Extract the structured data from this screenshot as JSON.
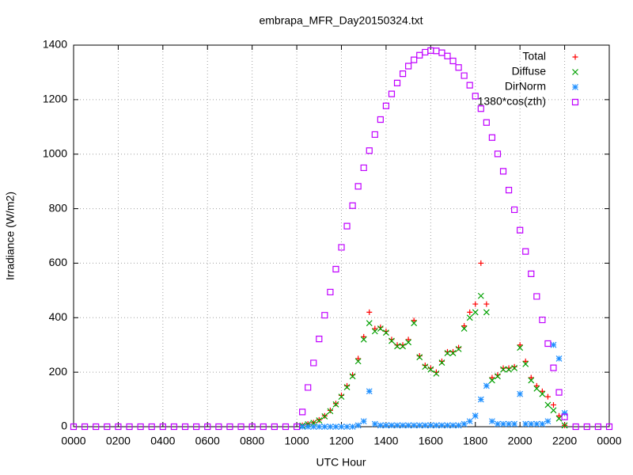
{
  "chart_data": {
    "type": "scatter",
    "title": "embrapa_MFR_Day20150324.txt",
    "xlabel": "UTC Hour",
    "ylabel": "Irradiance (W/m2)",
    "x": [
      0,
      0.5,
      1,
      1.5,
      2,
      2.5,
      3,
      3.5,
      4,
      4.5,
      5,
      5.5,
      6,
      6.5,
      7,
      7.5,
      8,
      8.5,
      9,
      9.5,
      10,
      10.25,
      10.5,
      10.75,
      11,
      11.25,
      11.5,
      11.75,
      12,
      12.25,
      12.5,
      12.75,
      13,
      13.25,
      13.5,
      13.75,
      14,
      14.25,
      14.5,
      14.75,
      15,
      15.25,
      15.5,
      15.75,
      16,
      16.25,
      16.5,
      16.75,
      17,
      17.25,
      17.5,
      17.75,
      18,
      18.25,
      18.5,
      18.75,
      19,
      19.25,
      19.5,
      19.75,
      20,
      20.25,
      20.5,
      20.75,
      21,
      21.25,
      21.5,
      21.75,
      22,
      22.5,
      23,
      23.5,
      24
    ],
    "series": [
      {
        "name": "Total",
        "color": "#ff0000",
        "marker": "plus",
        "values": [
          null,
          null,
          null,
          null,
          null,
          null,
          null,
          null,
          null,
          null,
          null,
          null,
          null,
          null,
          null,
          null,
          null,
          null,
          null,
          null,
          null,
          5,
          10,
          15,
          25,
          40,
          60,
          85,
          115,
          150,
          190,
          250,
          330,
          420,
          360,
          365,
          350,
          320,
          300,
          300,
          320,
          390,
          260,
          225,
          215,
          200,
          240,
          275,
          275,
          290,
          370,
          420,
          450,
          600,
          450,
          180,
          190,
          215,
          215,
          220,
          300,
          240,
          180,
          150,
          130,
          110,
          80,
          40,
          5,
          null,
          null,
          null,
          null
        ]
      },
      {
        "name": "Diffuse",
        "color": "#00a000",
        "marker": "cross",
        "values": [
          null,
          null,
          null,
          null,
          null,
          null,
          null,
          null,
          null,
          null,
          null,
          null,
          null,
          null,
          null,
          null,
          null,
          null,
          null,
          null,
          null,
          4,
          9,
          14,
          23,
          38,
          57,
          82,
          110,
          145,
          185,
          240,
          320,
          380,
          350,
          360,
          345,
          315,
          295,
          295,
          310,
          380,
          255,
          220,
          210,
          195,
          235,
          270,
          270,
          285,
          360,
          400,
          420,
          480,
          420,
          170,
          185,
          210,
          210,
          215,
          290,
          230,
          170,
          140,
          120,
          80,
          60,
          30,
          5,
          null,
          null,
          null,
          null
        ]
      },
      {
        "name": "DirNorm",
        "color": "#1e8fff",
        "marker": "star",
        "values": [
          null,
          null,
          null,
          null,
          null,
          null,
          null,
          null,
          null,
          null,
          null,
          null,
          null,
          null,
          null,
          null,
          null,
          null,
          null,
          null,
          null,
          0,
          0,
          0,
          0,
          0,
          0,
          0,
          0,
          0,
          0,
          5,
          20,
          130,
          10,
          5,
          5,
          5,
          5,
          5,
          5,
          5,
          5,
          5,
          5,
          5,
          5,
          5,
          5,
          5,
          10,
          20,
          40,
          100,
          150,
          20,
          10,
          10,
          10,
          10,
          120,
          10,
          10,
          10,
          10,
          20,
          300,
          250,
          50,
          null,
          null,
          null,
          null
        ]
      },
      {
        "name": "1380*cos(zth)",
        "color": "#c000ff",
        "marker": "square",
        "values": [
          0,
          0,
          0,
          0,
          0,
          0,
          0,
          0,
          0,
          0,
          0,
          0,
          0,
          0,
          0,
          0,
          0,
          0,
          0,
          0,
          0,
          54,
          144,
          234,
          322,
          409,
          494,
          578,
          658,
          736,
          811,
          882,
          950,
          1013,
          1072,
          1127,
          1177,
          1221,
          1261,
          1295,
          1323,
          1346,
          1363,
          1374,
          1380,
          1379,
          1372,
          1360,
          1342,
          1318,
          1288,
          1253,
          1213,
          1167,
          1116,
          1061,
          1001,
          937,
          868,
          796,
          721,
          643,
          561,
          478,
          392,
          305,
          216,
          126,
          36,
          0,
          0,
          0,
          0
        ]
      }
    ],
    "xlim": [
      0,
      24
    ],
    "xticks": [
      {
        "value": 0,
        "label": "0000"
      },
      {
        "value": 2,
        "label": "0200"
      },
      {
        "value": 4,
        "label": "0400"
      },
      {
        "value": 6,
        "label": "0600"
      },
      {
        "value": 8,
        "label": "0800"
      },
      {
        "value": 10,
        "label": "1000"
      },
      {
        "value": 12,
        "label": "1200"
      },
      {
        "value": 14,
        "label": "1400"
      },
      {
        "value": 16,
        "label": "1600"
      },
      {
        "value": 18,
        "label": "1800"
      },
      {
        "value": 20,
        "label": "2000"
      },
      {
        "value": 22,
        "label": "2200"
      },
      {
        "value": 24,
        "label": "0000"
      }
    ],
    "ylim": [
      0,
      1400
    ],
    "yticks": [
      0,
      200,
      400,
      600,
      800,
      1000,
      1200,
      1400
    ],
    "grid": true,
    "legend": "top right"
  }
}
